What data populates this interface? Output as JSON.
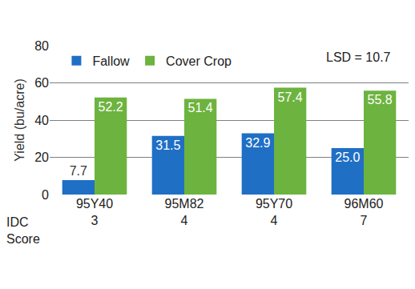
{
  "chart_data": {
    "type": "bar",
    "categories": [
      "95Y40\n3",
      "95M82\n4",
      "95Y70\n4",
      "96M60\n7"
    ],
    "series": [
      {
        "name": "Fallow",
        "color": "#1f6fc5",
        "values": [
          7.7,
          31.5,
          32.9,
          25.0
        ],
        "value_labels": [
          "7.7",
          "31.5",
          "32.9",
          "25.0"
        ]
      },
      {
        "name": "Cover Crop",
        "color": "#6db33f",
        "values": [
          52.2,
          51.4,
          57.4,
          55.8
        ],
        "value_labels": [
          "52.2",
          "51.4",
          "57.4",
          "55.8"
        ]
      }
    ],
    "y_label": "Yield (bu/acre)",
    "annotations": [
      "LSD = 10.7",
      "IDC\nScore"
    ],
    "ylim": [
      0,
      80
    ],
    "yticks": [
      0,
      20,
      40,
      60,
      80
    ],
    "grid": true,
    "legend": "upper left",
    "data_labels": true
  }
}
